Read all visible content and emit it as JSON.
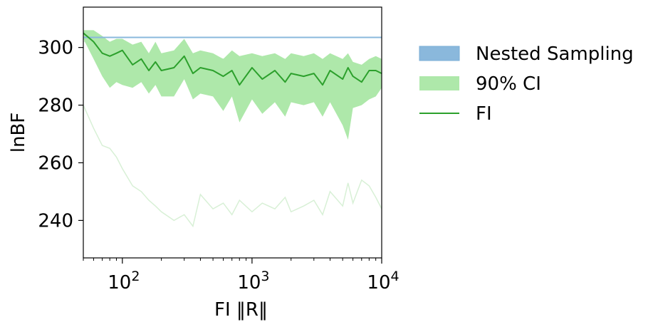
{
  "chart_data": {
    "type": "line",
    "xlabel": "FI ‖R‖",
    "ylabel": "lnBF",
    "xscale": "log",
    "xlim": [
      50,
      10000
    ],
    "ylim": [
      227,
      314
    ],
    "x_ticks": [
      {
        "value": 100,
        "base": "10",
        "exp": "2"
      },
      {
        "value": 1000,
        "base": "10",
        "exp": "3"
      },
      {
        "value": 10000,
        "base": "10",
        "exp": "4"
      }
    ],
    "y_ticks": [
      240,
      260,
      280,
      300
    ],
    "grid": false,
    "legend_position": "outside-right",
    "legend": [
      {
        "label": "Nested Sampling",
        "kind": "patch",
        "color": "#8ab8dc"
      },
      {
        "label": "90% CI",
        "kind": "patch",
        "color": "#aee8aa"
      },
      {
        "label": "FI",
        "kind": "line",
        "color": "#2ca02c"
      }
    ],
    "nested_sampling": {
      "value": 303.5,
      "color": "#8ab8dc",
      "edge_color": "#7aaed6"
    },
    "x": [
      50,
      60,
      70,
      80,
      90,
      100,
      120,
      140,
      160,
      180,
      200,
      250,
      300,
      350,
      400,
      500,
      600,
      700,
      800,
      1000,
      1200,
      1500,
      1800,
      2000,
      2500,
      3000,
      3500,
      4000,
      5000,
      5500,
      6000,
      7000,
      8000,
      9000,
      10000
    ],
    "series": [
      {
        "name": "FI",
        "color": "#2ca02c",
        "values": [
          305,
          302,
          298,
          297,
          298,
          299,
          294,
          296,
          292,
          295,
          292,
          293,
          297,
          291,
          293,
          292,
          290,
          292,
          287,
          293,
          289,
          292,
          288,
          291,
          290,
          291,
          287,
          292,
          289,
          293,
          290,
          288,
          292,
          292,
          291
        ]
      },
      {
        "name": "90% CI",
        "kind": "band",
        "color": "#aee8aa",
        "lower": [
          303,
          296,
          290,
          286,
          288,
          287,
          286,
          288,
          284,
          287,
          283,
          283,
          289,
          282,
          284,
          283,
          278,
          283,
          274,
          282,
          277,
          281,
          276,
          281,
          280,
          281,
          276,
          281,
          273,
          268,
          279,
          280,
          282,
          283,
          286
        ],
        "upper": [
          306,
          306,
          304,
          302,
          303,
          303,
          301,
          302,
          298,
          302,
          298,
          299,
          303,
          298,
          299,
          298,
          296,
          299,
          297,
          298,
          297,
          298,
          296,
          298,
          297,
          298,
          296,
          298,
          296,
          298,
          295,
          294,
          296,
          297,
          296
        ]
      }
    ],
    "faint_traces": [
      {
        "color": "#d8f0d6",
        "values": [
          280,
          272,
          266,
          265,
          262,
          258,
          252,
          250,
          247,
          245,
          243,
          240,
          242,
          238,
          249,
          244,
          246,
          242,
          247,
          243,
          246,
          244,
          248,
          243,
          245,
          247,
          242,
          250,
          245,
          253,
          246,
          254,
          252,
          248,
          244
        ]
      },
      {
        "color": "#d8f0d6",
        "values": [
          302,
          303,
          301,
          300,
          302,
          301,
          299,
          300,
          297,
          299,
          297,
          298,
          300,
          297,
          298,
          297,
          296,
          297,
          295,
          297,
          296,
          297,
          295,
          297,
          296,
          297,
          295,
          297,
          294,
          296,
          294,
          293,
          295,
          296,
          295
        ]
      }
    ]
  }
}
